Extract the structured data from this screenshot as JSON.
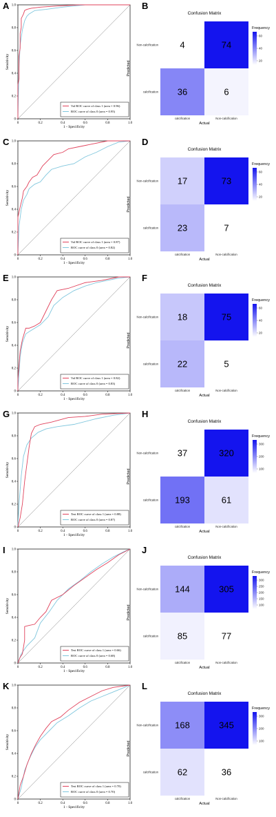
{
  "panels": [
    {
      "label": "A",
      "kind": "roc",
      "legend": [
        "Val ROC curve of class 1 (area = 0.96)",
        "ROC curve of class 0 (area = 0.95)"
      ]
    },
    {
      "label": "B",
      "kind": "cm",
      "title": "Confusion Matrix",
      "cells": [
        4,
        74,
        36,
        6
      ],
      "colorbar": {
        "title": "Frequency",
        "ticks": [
          "60",
          "40",
          "20"
        ]
      }
    },
    {
      "label": "C",
      "kind": "roc",
      "legend": [
        "Val ROC curve of class 1 (area = 0.87)",
        "ROC curve of class 0 (area = 0.82)"
      ]
    },
    {
      "label": "D",
      "kind": "cm",
      "title": "Confusion Matrix",
      "cells": [
        17,
        73,
        23,
        7
      ],
      "colorbar": {
        "title": "Frequency",
        "ticks": [
          "60",
          "40",
          "20"
        ]
      }
    },
    {
      "label": "E",
      "kind": "roc",
      "legend": [
        "Val ROC curve of class 1 (area = 0.82)",
        "ROC curve of class 0 (area = 0.83)"
      ]
    },
    {
      "label": "F",
      "kind": "cm",
      "title": "Confusion Matrix",
      "cells": [
        18,
        75,
        22,
        5
      ],
      "colorbar": {
        "title": "Frequency",
        "ticks": [
          "60",
          "40",
          "20"
        ]
      }
    },
    {
      "label": "G",
      "kind": "roc",
      "legend": [
        "Test ROC curve of class 1 (area = 0.88)",
        "ROC curve of class 0 (area = 0.87)"
      ]
    },
    {
      "label": "H",
      "kind": "cm",
      "title": "Confusion Matrix",
      "cells": [
        37,
        320,
        193,
        61
      ],
      "colorbar": {
        "title": "Frequency",
        "ticks": [
          "300",
          "200",
          "100"
        ]
      }
    },
    {
      "label": "I",
      "kind": "roc",
      "legend": [
        "Test ROC curve of class 1 (area = 0.66)",
        "ROC curve of class 0 (area = 0.68)"
      ]
    },
    {
      "label": "J",
      "kind": "cm",
      "title": "Confusion Matrix",
      "cells": [
        144,
        305,
        85,
        77
      ],
      "colorbar": {
        "title": "Frequency",
        "ticks": [
          "300",
          "250",
          "200",
          "150",
          "100"
        ]
      }
    },
    {
      "label": "K",
      "kind": "roc",
      "legend": [
        "Test ROC curve of class 1 (area = 0.70)",
        "ROC curve of class 0 (area = 0.70)"
      ]
    },
    {
      "label": "L",
      "kind": "cm",
      "title": "Confusion Matrix",
      "cells": [
        168,
        345,
        62,
        36
      ],
      "colorbar": {
        "title": "Frequency",
        "ticks": [
          "300",
          "200",
          "100"
        ]
      }
    }
  ],
  "roc_axes": {
    "xlabel": "1 - Specificity",
    "ylabel": "Sensitivity",
    "ticks": [
      "0",
      "0.2",
      "0.4",
      "0.6",
      "0.8",
      "1.0"
    ]
  },
  "cm_axes": {
    "xlabel": "Actual",
    "ylabel": "Predicted",
    "x_ticks": [
      "calcification",
      "Non-calcification"
    ],
    "y_ticks": [
      "Non-calcification",
      "calcification"
    ]
  },
  "colors": {
    "roc_class1": "#e0405a",
    "roc_class0": "#7fc6dd",
    "cm_high": "#1414ee",
    "cm_low": "#ffffff"
  },
  "chart_data": [
    {
      "type": "line",
      "panel": "A",
      "xlim": [
        0,
        1
      ],
      "ylim": [
        0,
        1
      ],
      "xlabel": "1 - Specificity",
      "ylabel": "Sensitivity",
      "series": [
        {
          "name": "Val ROC curve of class 1 (area = 0.96)",
          "x": [
            0,
            0,
            0.01,
            0.01,
            0.02,
            0.02,
            0.03,
            0.03,
            0.05,
            0.06,
            0.08,
            0.12,
            0.2,
            0.35,
            0.55,
            1
          ],
          "y": [
            0,
            0.3,
            0.35,
            0.55,
            0.62,
            0.75,
            0.8,
            0.88,
            0.92,
            0.95,
            0.96,
            0.97,
            0.98,
            0.99,
            1,
            1
          ]
        },
        {
          "name": "ROC curve of class 0 (area = 0.95)",
          "x": [
            0,
            0.01,
            0.02,
            0.04,
            0.06,
            0.08,
            0.1,
            0.15,
            0.25,
            0.4,
            0.6,
            1
          ],
          "y": [
            0,
            0.45,
            0.65,
            0.78,
            0.86,
            0.9,
            0.92,
            0.95,
            0.96,
            0.98,
            1,
            1
          ]
        }
      ]
    },
    {
      "type": "heatmap",
      "panel": "B",
      "title": "Confusion Matrix",
      "xlabel": "Actual",
      "ylabel": "Predicted",
      "x_categories": [
        "calcification",
        "Non-calcification"
      ],
      "y_categories": [
        "Non-calcification",
        "calcification"
      ],
      "values": [
        [
          4,
          74
        ],
        [
          36,
          6
        ]
      ]
    },
    {
      "type": "line",
      "panel": "C",
      "xlim": [
        0,
        1
      ],
      "ylim": [
        0,
        1
      ],
      "xlabel": "1 - Specificity",
      "ylabel": "Sensitivity",
      "series": [
        {
          "name": "Val ROC curve of class 1 (area = 0.87)",
          "x": [
            0,
            0,
            0.02,
            0.04,
            0.05,
            0.08,
            0.1,
            0.13,
            0.17,
            0.22,
            0.27,
            0.32,
            0.4,
            0.45,
            0.55,
            0.65,
            0.8,
            1
          ],
          "y": [
            0,
            0.33,
            0.42,
            0.5,
            0.56,
            0.6,
            0.64,
            0.68,
            0.7,
            0.78,
            0.83,
            0.88,
            0.9,
            0.93,
            0.95,
            0.97,
            1,
            1
          ]
        },
        {
          "name": "ROC curve of class 0 (area = 0.82)",
          "x": [
            0,
            0.01,
            0.03,
            0.05,
            0.08,
            0.1,
            0.15,
            0.2,
            0.25,
            0.3,
            0.4,
            0.5,
            0.6,
            0.7,
            0.8,
            0.9,
            1
          ],
          "y": [
            0,
            0.25,
            0.4,
            0.48,
            0.53,
            0.58,
            0.62,
            0.64,
            0.7,
            0.75,
            0.78,
            0.8,
            0.86,
            0.9,
            0.95,
            0.99,
            1
          ]
        }
      ]
    },
    {
      "type": "heatmap",
      "panel": "D",
      "title": "Confusion Matrix",
      "xlabel": "Actual",
      "ylabel": "Predicted",
      "x_categories": [
        "calcification",
        "Non-calcification"
      ],
      "y_categories": [
        "Non-calcification",
        "calcification"
      ],
      "values": [
        [
          17,
          73
        ],
        [
          23,
          7
        ]
      ]
    },
    {
      "type": "line",
      "panel": "E",
      "xlim": [
        0,
        1
      ],
      "ylim": [
        0,
        1
      ],
      "xlabel": "1 - Specificity",
      "ylabel": "Sensitivity",
      "series": [
        {
          "name": "Val ROC curve of class 1 (area = 0.82)",
          "x": [
            0,
            0,
            0.02,
            0.04,
            0.07,
            0.1,
            0.15,
            0.2,
            0.25,
            0.3,
            0.35,
            0.45,
            0.6,
            0.75,
            0.9,
            1
          ],
          "y": [
            0,
            0.1,
            0.35,
            0.45,
            0.55,
            0.55,
            0.57,
            0.6,
            0.7,
            0.8,
            0.88,
            0.9,
            0.95,
            0.97,
            1,
            1
          ]
        },
        {
          "name": "ROC curve of class 0 (area = 0.83)",
          "x": [
            0,
            0.02,
            0.04,
            0.07,
            0.1,
            0.15,
            0.2,
            0.27,
            0.32,
            0.4,
            0.5,
            0.6,
            0.7,
            0.8,
            0.9,
            1
          ],
          "y": [
            0,
            0.3,
            0.42,
            0.5,
            0.52,
            0.55,
            0.58,
            0.65,
            0.75,
            0.82,
            0.88,
            0.92,
            0.95,
            0.97,
            0.99,
            1
          ]
        }
      ]
    },
    {
      "type": "heatmap",
      "panel": "F",
      "title": "Confusion Matrix",
      "xlabel": "Actual",
      "ylabel": "Predicted",
      "x_categories": [
        "calcification",
        "Non-calcification"
      ],
      "y_categories": [
        "Non-calcification",
        "calcification"
      ],
      "values": [
        [
          18,
          75
        ],
        [
          22,
          5
        ]
      ]
    },
    {
      "type": "line",
      "panel": "G",
      "xlim": [
        0,
        1
      ],
      "ylim": [
        0,
        1
      ],
      "xlabel": "1 - Specificity",
      "ylabel": "Sensitivity",
      "series": [
        {
          "name": "Test ROC curve of class 1 (area = 0.88)",
          "x": [
            0,
            0.02,
            0.04,
            0.06,
            0.08,
            0.1,
            0.12,
            0.15,
            0.2,
            0.3,
            0.45,
            0.6,
            0.75,
            1
          ],
          "y": [
            0,
            0.08,
            0.2,
            0.4,
            0.55,
            0.7,
            0.82,
            0.88,
            0.9,
            0.92,
            0.96,
            0.97,
            0.99,
            1
          ]
        },
        {
          "name": "ROC curve of class 0 (area = 0.87)",
          "x": [
            0,
            0.01,
            0.03,
            0.05,
            0.08,
            0.12,
            0.18,
            0.25,
            0.35,
            0.5,
            0.7,
            0.85,
            1
          ],
          "y": [
            0,
            0.2,
            0.45,
            0.62,
            0.72,
            0.78,
            0.83,
            0.86,
            0.88,
            0.9,
            0.95,
            0.98,
            1
          ]
        }
      ]
    },
    {
      "type": "heatmap",
      "panel": "H",
      "title": "Confusion Matrix",
      "xlabel": "Actual",
      "ylabel": "Predicted",
      "x_categories": [
        "calcification",
        "Non-calcification"
      ],
      "y_categories": [
        "Non-calcification",
        "calcification"
      ],
      "values": [
        [
          37,
          320
        ],
        [
          193,
          61
        ]
      ]
    },
    {
      "type": "line",
      "panel": "I",
      "xlim": [
        0,
        1
      ],
      "ylim": [
        0,
        1
      ],
      "xlabel": "1 - Specificity",
      "ylabel": "Sensitivity",
      "series": [
        {
          "name": "Test ROC curve of class 1 (area = 0.66)",
          "x": [
            0,
            0.02,
            0.04,
            0.06,
            0.06,
            0.1,
            0.15,
            0.2,
            0.25,
            0.3,
            0.4,
            0.5,
            0.6,
            0.7,
            0.8,
            0.9,
            1
          ],
          "y": [
            0,
            0.05,
            0.08,
            0.2,
            0.32,
            0.33,
            0.34,
            0.4,
            0.45,
            0.55,
            0.6,
            0.68,
            0.75,
            0.82,
            0.88,
            0.95,
            1
          ]
        },
        {
          "name": "ROC curve of class 0 (area = 0.68)",
          "x": [
            0,
            0.03,
            0.08,
            0.15,
            0.2,
            0.28,
            0.35,
            0.45,
            0.55,
            0.65,
            0.75,
            0.85,
            0.95,
            1
          ],
          "y": [
            0,
            0.08,
            0.15,
            0.22,
            0.35,
            0.45,
            0.55,
            0.65,
            0.72,
            0.8,
            0.87,
            0.93,
            0.98,
            1
          ]
        }
      ]
    },
    {
      "type": "heatmap",
      "panel": "J",
      "title": "Confusion Matrix",
      "xlabel": "Actual",
      "ylabel": "Predicted",
      "x_categories": [
        "calcification",
        "Non-calcification"
      ],
      "y_categories": [
        "Non-calcification",
        "calcification"
      ],
      "values": [
        [
          144,
          305
        ],
        [
          85,
          77
        ]
      ]
    },
    {
      "type": "line",
      "panel": "K",
      "xlim": [
        0,
        1
      ],
      "ylim": [
        0,
        1
      ],
      "xlabel": "1 - Specificity",
      "ylabel": "Sensitivity",
      "series": [
        {
          "name": "Test ROC curve of class 1 (area = 0.70)",
          "x": [
            0,
            0.02,
            0.05,
            0.08,
            0.12,
            0.16,
            0.2,
            0.25,
            0.3,
            0.38,
            0.45,
            0.55,
            0.65,
            0.75,
            0.85,
            1
          ],
          "y": [
            0,
            0.12,
            0.2,
            0.3,
            0.4,
            0.48,
            0.55,
            0.62,
            0.68,
            0.72,
            0.78,
            0.85,
            0.9,
            0.95,
            0.98,
            1
          ]
        },
        {
          "name": "ROC curve of class 0 (area = 0.70)",
          "x": [
            0,
            0.03,
            0.06,
            0.1,
            0.15,
            0.2,
            0.28,
            0.35,
            0.45,
            0.55,
            0.65,
            0.75,
            0.85,
            0.95,
            1
          ],
          "y": [
            0,
            0.1,
            0.25,
            0.35,
            0.45,
            0.52,
            0.6,
            0.67,
            0.73,
            0.8,
            0.86,
            0.9,
            0.94,
            0.98,
            1
          ]
        }
      ]
    },
    {
      "type": "heatmap",
      "panel": "L",
      "title": "Confusion Matrix",
      "xlabel": "Actual",
      "ylabel": "Predicted",
      "x_categories": [
        "calcification",
        "Non-calcification"
      ],
      "y_categories": [
        "Non-calcification",
        "calcification"
      ],
      "values": [
        [
          168,
          345
        ],
        [
          62,
          36
        ]
      ]
    }
  ]
}
